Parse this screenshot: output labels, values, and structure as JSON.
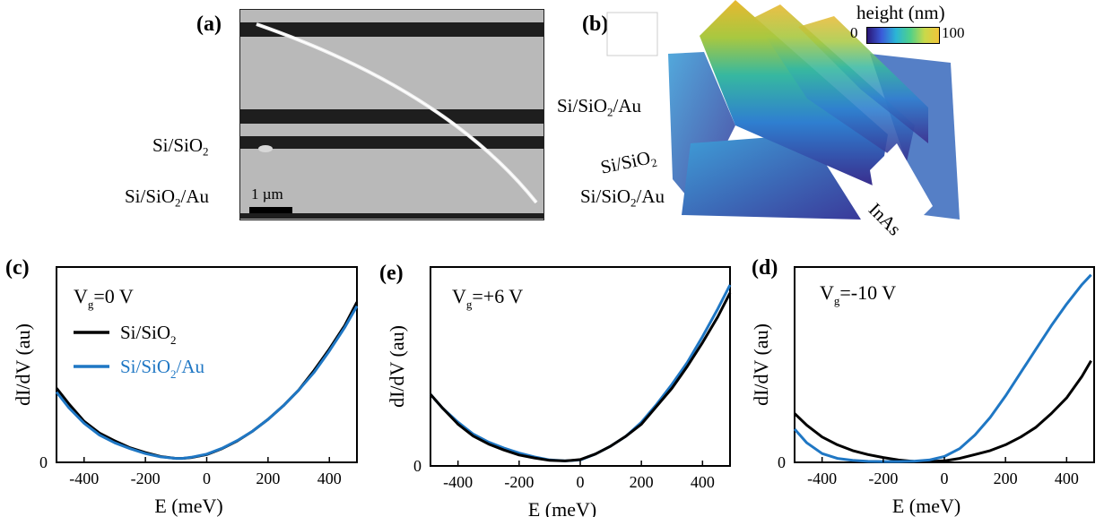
{
  "panels": {
    "a": {
      "label": "(a)",
      "labels": {
        "substrate1_main": "Si/SiO",
        "substrate1_sub": "2",
        "substrate2_main": "Si/SiO",
        "substrate2_sub": "2",
        "substrate2_tail": "/Au"
      },
      "scalebar": "1 µm"
    },
    "b": {
      "label": "(b)",
      "colorbar_title": "height (nm)",
      "colorbar_min": "0",
      "colorbar_max": "100",
      "labels": {
        "top_main": "Si/SiO",
        "top_sub": "2",
        "top_tail": "/Au",
        "mid_main": "Si/SiO",
        "mid_sub": "2",
        "bot_main": "Si/SiO",
        "bot_sub": "2",
        "bot_tail": "/Au",
        "wire": "InAs"
      }
    }
  },
  "chart_data": [
    {
      "panel": "(c)",
      "type": "line",
      "xlabel": "E (meV)",
      "ylabel": "dI/dV (au)",
      "annotation": {
        "main": "V",
        "sub": "g",
        "tail": "=0 V"
      },
      "xlim": [
        -490,
        490
      ],
      "ylim": [
        0,
        1
      ],
      "xticks": [
        -400,
        -200,
        0,
        200,
        400
      ],
      "yticks": [
        0
      ],
      "legend": [
        {
          "main": "Si/SiO",
          "sub": "2",
          "tail": "",
          "color": "#000000"
        },
        {
          "main": "Si/SiO",
          "sub": "2",
          "tail": "/Au",
          "color": "#1f77c4"
        }
      ],
      "series": [
        {
          "color": "#000000",
          "x": [
            -490,
            -450,
            -400,
            -350,
            -300,
            -250,
            -200,
            -150,
            -100,
            -80,
            -50,
            0,
            50,
            100,
            150,
            200,
            250,
            300,
            350,
            400,
            450,
            490
          ],
          "y": [
            0.38,
            0.3,
            0.21,
            0.15,
            0.11,
            0.075,
            0.05,
            0.03,
            0.02,
            0.02,
            0.025,
            0.04,
            0.07,
            0.11,
            0.16,
            0.22,
            0.29,
            0.37,
            0.47,
            0.58,
            0.7,
            0.82
          ]
        },
        {
          "color": "#1f77c4",
          "x": [
            -490,
            -450,
            -400,
            -350,
            -300,
            -250,
            -200,
            -150,
            -100,
            -80,
            -50,
            0,
            50,
            100,
            150,
            200,
            250,
            300,
            350,
            400,
            450,
            490
          ],
          "y": [
            0.36,
            0.28,
            0.2,
            0.14,
            0.1,
            0.07,
            0.045,
            0.028,
            0.02,
            0.02,
            0.026,
            0.042,
            0.072,
            0.112,
            0.16,
            0.22,
            0.29,
            0.37,
            0.46,
            0.57,
            0.69,
            0.8
          ]
        }
      ]
    },
    {
      "panel": "(e)",
      "type": "line",
      "xlabel": "E (meV)",
      "ylabel": "dI/dV (au)",
      "annotation": {
        "main": "V",
        "sub": "g",
        "tail": "=+6 V"
      },
      "xlim": [
        -490,
        490
      ],
      "ylim": [
        0,
        1
      ],
      "xticks": [
        -400,
        -200,
        0,
        200,
        400
      ],
      "yticks": [
        0
      ],
      "legend": [],
      "series": [
        {
          "color": "#1f77c4",
          "x": [
            -490,
            -450,
            -400,
            -350,
            -300,
            -250,
            -200,
            -150,
            -100,
            -50,
            0,
            50,
            100,
            150,
            200,
            250,
            300,
            350,
            400,
            450,
            490
          ],
          "y": [
            0.36,
            0.29,
            0.22,
            0.16,
            0.12,
            0.09,
            0.065,
            0.045,
            0.03,
            0.025,
            0.03,
            0.06,
            0.1,
            0.15,
            0.22,
            0.31,
            0.41,
            0.52,
            0.65,
            0.79,
            0.91
          ]
        },
        {
          "color": "#000000",
          "x": [
            -490,
            -450,
            -400,
            -350,
            -300,
            -250,
            -200,
            -150,
            -100,
            -50,
            0,
            50,
            100,
            150,
            200,
            250,
            300,
            350,
            400,
            450,
            490
          ],
          "y": [
            0.36,
            0.29,
            0.21,
            0.15,
            0.11,
            0.08,
            0.055,
            0.04,
            0.028,
            0.025,
            0.032,
            0.06,
            0.1,
            0.15,
            0.21,
            0.3,
            0.39,
            0.5,
            0.62,
            0.75,
            0.87
          ]
        }
      ]
    },
    {
      "panel": "(d)",
      "type": "line",
      "xlabel": "E (meV)",
      "ylabel": "dI/dV (au)",
      "annotation": {
        "main": "V",
        "sub": "g",
        "tail": "=-10 V"
      },
      "xlim": [
        -490,
        490
      ],
      "ylim": [
        0,
        1
      ],
      "xticks": [
        -400,
        -200,
        0,
        200,
        400
      ],
      "yticks": [
        0
      ],
      "legend": [],
      "series": [
        {
          "color": "#000000",
          "x": [
            -490,
            -450,
            -400,
            -350,
            -300,
            -250,
            -200,
            -150,
            -100,
            -50,
            0,
            50,
            100,
            150,
            200,
            250,
            300,
            350,
            400,
            450,
            480
          ],
          "y": [
            0.25,
            0.19,
            0.13,
            0.09,
            0.06,
            0.04,
            0.025,
            0.012,
            0.005,
            0.004,
            0.008,
            0.02,
            0.04,
            0.06,
            0.09,
            0.13,
            0.18,
            0.25,
            0.33,
            0.44,
            0.52
          ]
        },
        {
          "color": "#1f77c4",
          "x": [
            -490,
            -450,
            -400,
            -350,
            -300,
            -250,
            -200,
            -150,
            -100,
            -50,
            0,
            50,
            100,
            150,
            200,
            250,
            300,
            350,
            400,
            450,
            480
          ],
          "y": [
            0.17,
            0.1,
            0.045,
            0.02,
            0.01,
            0.005,
            0.004,
            0.004,
            0.006,
            0.012,
            0.03,
            0.07,
            0.14,
            0.23,
            0.34,
            0.46,
            0.58,
            0.7,
            0.81,
            0.91,
            0.96
          ]
        }
      ]
    }
  ]
}
